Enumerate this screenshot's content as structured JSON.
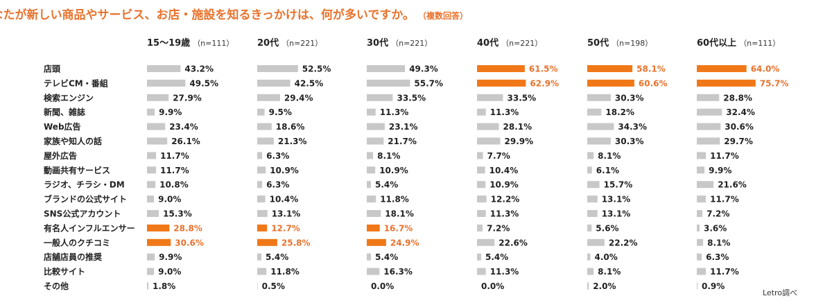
{
  "chart_data": {
    "type": "bar",
    "orientation": "horizontal",
    "title": "Q.あなたが新しい商品やサービス、お店・施設を知るきっかけは、何が多いですか。",
    "title_note": "（複数回答）",
    "source": "Letro調べ",
    "categories": [
      "店頭",
      "テレビCM・番組",
      "検索エンジン",
      "新聞、雑誌",
      "Web広告",
      "家族や知人の話",
      "屋外広告",
      "動画共有サービス",
      "ラジオ、チラシ・DM",
      "ブランドの公式サイト",
      "SNS公式アカウント",
      "有名人インフルエンサー",
      "一般人のクチコミ",
      "店舗店員の推奨",
      "比較サイト",
      "その他"
    ],
    "value_suffix": "%",
    "xlim": [
      0,
      100
    ],
    "colors": {
      "normal": "#c8c8c8",
      "highlight": "#f07818",
      "highlight_text": "#e8722c"
    },
    "series": [
      {
        "name": "15〜19歳",
        "n": "（n=111）",
        "values": [
          43.2,
          49.5,
          27.9,
          9.9,
          23.4,
          26.1,
          11.7,
          11.7,
          10.8,
          9.0,
          15.3,
          28.8,
          30.6,
          9.9,
          9.0,
          1.8
        ],
        "highlight": [
          11,
          12
        ]
      },
      {
        "name": "20代",
        "n": "（n=221）",
        "values": [
          52.5,
          42.5,
          29.4,
          9.5,
          18.6,
          21.3,
          6.3,
          10.9,
          6.3,
          10.4,
          13.1,
          12.7,
          25.8,
          5.4,
          11.8,
          0.5
        ],
        "highlight": [
          11,
          12
        ]
      },
      {
        "name": "30代",
        "n": "（n=221）",
        "values": [
          49.3,
          55.7,
          33.5,
          11.3,
          23.1,
          21.7,
          8.1,
          10.9,
          5.4,
          11.8,
          18.1,
          16.7,
          24.9,
          5.4,
          16.3,
          0.0
        ],
        "highlight": [
          11,
          12
        ]
      },
      {
        "name": "40代",
        "n": "（n=221）",
        "values": [
          61.5,
          62.9,
          33.5,
          11.3,
          28.1,
          29.9,
          7.7,
          10.4,
          10.9,
          12.2,
          11.3,
          7.2,
          22.6,
          5.4,
          11.3,
          0.0
        ],
        "highlight": [
          0,
          1
        ]
      },
      {
        "name": "50代",
        "n": "（n=198）",
        "values": [
          58.1,
          60.6,
          30.3,
          18.2,
          34.3,
          30.3,
          8.1,
          6.1,
          15.7,
          13.1,
          13.1,
          5.6,
          22.2,
          4.0,
          8.1,
          2.0
        ],
        "highlight": [
          0,
          1
        ]
      },
      {
        "name": "60代以上",
        "n": "（n=111）",
        "values": [
          64.0,
          75.7,
          28.8,
          32.4,
          30.6,
          29.7,
          11.7,
          9.9,
          21.6,
          11.7,
          7.2,
          3.6,
          8.1,
          6.3,
          11.7,
          0.9
        ],
        "highlight": [
          0,
          1
        ]
      }
    ]
  }
}
